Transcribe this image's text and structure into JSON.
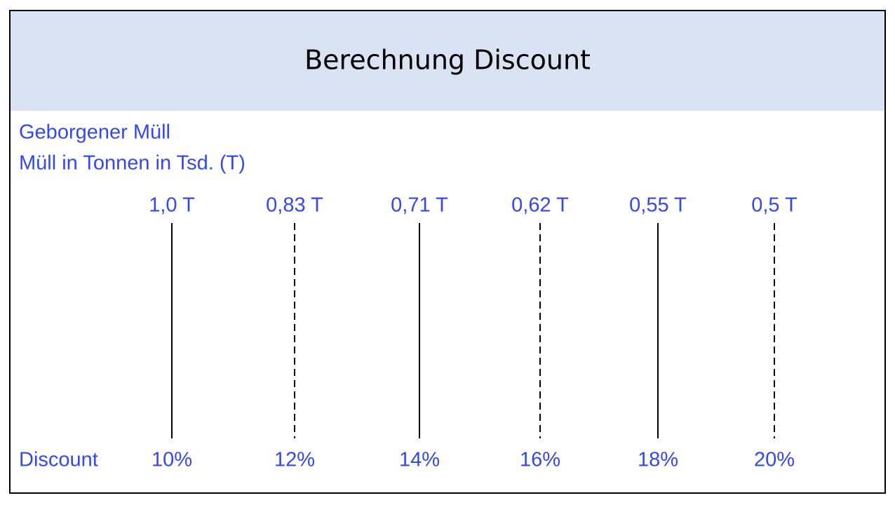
{
  "header": {
    "title": "Berechnung Discount"
  },
  "labels": [
    "Geborgener Müll",
    "Müll in Tonnen in Tsd. (T)"
  ],
  "row_label": "Discount",
  "columns": [
    {
      "top": "1,0 T",
      "bottom": "10%",
      "style": "solid"
    },
    {
      "top": "0,83 T",
      "bottom": "12%",
      "style": "dashed"
    },
    {
      "top": "0,71 T",
      "bottom": "14%",
      "style": "solid"
    },
    {
      "top": "0,62 T",
      "bottom": "16%",
      "style": "dashed"
    },
    {
      "top": "0,55 T",
      "bottom": "18%",
      "style": "solid"
    },
    {
      "top": "0,5 T",
      "bottom": "20%",
      "style": "dashed"
    }
  ]
}
